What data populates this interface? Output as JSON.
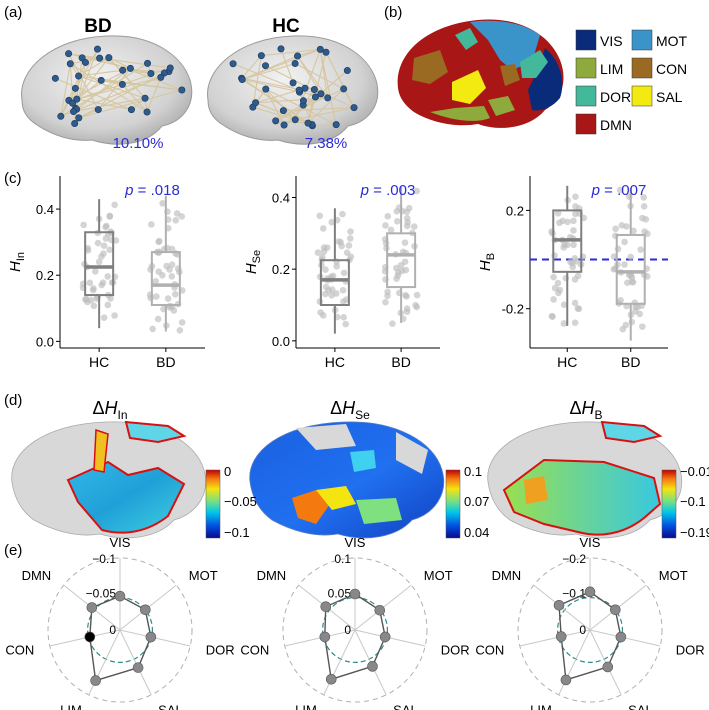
{
  "panel_labels": [
    "(a)",
    "(b)",
    "(c)",
    "(d)",
    "(e)"
  ],
  "panel_a": {
    "groups": [
      {
        "label": "BD",
        "percent": "10.10%"
      },
      {
        "label": "HC",
        "percent": "7.38%"
      }
    ],
    "node_color": "#2f5a8c",
    "edge_color": "#d6c7a0",
    "percent_color": "#2b2bd9"
  },
  "panel_b": {
    "legend": [
      {
        "abbr": "VIS",
        "color": "#0a2a7a"
      },
      {
        "abbr": "MOT",
        "color": "#3a94c9"
      },
      {
        "abbr": "LIM",
        "color": "#8faa3c"
      },
      {
        "abbr": "CON",
        "color": "#9a6a22"
      },
      {
        "abbr": "DOR",
        "color": "#44b89a"
      },
      {
        "abbr": "SAL",
        "color": "#f2ea10"
      },
      {
        "abbr": "DMN",
        "color": "#a81616"
      }
    ]
  },
  "chart_data": [
    {
      "type": "box",
      "ylabel_main": "H",
      "ylabel_sub": "In",
      "categories": [
        "HC",
        "BD"
      ],
      "ylim": [
        -0.02,
        0.5
      ],
      "yticks": [
        0.0,
        0.2,
        0.4
      ],
      "ytick_labels": [
        "0.0",
        "0.2",
        "0.4"
      ],
      "p_label": "p = .018",
      "boxes": [
        {
          "q1": 0.14,
          "median": 0.225,
          "q3": 0.33,
          "whisker_low": 0.04,
          "whisker_high": 0.43
        },
        {
          "q1": 0.11,
          "median": 0.17,
          "q3": 0.27,
          "whisker_low": 0.03,
          "whisker_high": 0.44
        }
      ],
      "reference_line": null
    },
    {
      "type": "box",
      "ylabel_main": "H",
      "ylabel_sub": "Se",
      "categories": [
        "HC",
        "BD"
      ],
      "ylim": [
        -0.02,
        0.46
      ],
      "yticks": [
        0.0,
        0.2,
        0.4
      ],
      "ytick_labels": [
        "0.0",
        "0.2",
        "0.4"
      ],
      "p_label": "p = .003",
      "boxes": [
        {
          "q1": 0.1,
          "median": 0.17,
          "q3": 0.225,
          "whisker_low": 0.02,
          "whisker_high": 0.37
        },
        {
          "q1": 0.15,
          "median": 0.24,
          "q3": 0.3,
          "whisker_low": 0.05,
          "whisker_high": 0.43
        }
      ],
      "reference_line": null
    },
    {
      "type": "box",
      "ylabel_main": "H",
      "ylabel_sub": "B",
      "categories": [
        "HC",
        "BD"
      ],
      "ylim": [
        -0.36,
        0.34
      ],
      "yticks": [
        -0.2,
        0.2
      ],
      "ytick_labels": [
        "-0.2",
        "0.2"
      ],
      "p_label": "p = .007",
      "boxes": [
        {
          "q1": -0.05,
          "median": 0.08,
          "q3": 0.2,
          "whisker_low": -0.27,
          "whisker_high": 0.3
        },
        {
          "q1": -0.18,
          "median": -0.05,
          "q3": 0.1,
          "whisker_low": -0.33,
          "whisker_high": 0.29
        }
      ],
      "reference_line": 0.0
    }
  ],
  "panel_d": [
    {
      "title_main": "ΔH",
      "title_sub": "In",
      "cbar_labels": [
        "0",
        "−0.05",
        "−0.1"
      ],
      "cbar_min": "#0a0a8a",
      "cbar_max": "#c00000"
    },
    {
      "title_main": "ΔH",
      "title_sub": "Se",
      "cbar_labels": [
        "0.1",
        "0.07",
        "0.04"
      ],
      "cbar_min": "#0a0a8a",
      "cbar_max": "#c00000"
    },
    {
      "title_main": "ΔH",
      "title_sub": "B",
      "cbar_labels": [
        "−0.01",
        "−0.1",
        "−0.19"
      ],
      "cbar_min": "#0a0a8a",
      "cbar_max": "#c00000"
    }
  ],
  "radar": {
    "axes": [
      "VIS",
      "MOT",
      "DOR",
      "SAL",
      "LIM",
      "CON",
      "DMN"
    ],
    "charts": [
      {
        "ring_labels": [
          "−0.1",
          "−0.05",
          "0"
        ],
        "values": [
          0.47,
          0.45,
          0.44,
          0.58,
          0.78,
          0.43,
          0.5
        ],
        "highlight": [
          5
        ]
      },
      {
        "ring_labels": [
          "0.1",
          "0.05",
          "0"
        ],
        "values": [
          0.5,
          0.44,
          0.43,
          0.56,
          0.76,
          0.43,
          0.52
        ],
        "highlight": []
      },
      {
        "ring_labels": [
          "−0.2",
          "−0.1",
          "0"
        ],
        "values": [
          0.53,
          0.45,
          0.44,
          0.57,
          0.77,
          0.41,
          0.55
        ],
        "highlight": []
      }
    ]
  }
}
